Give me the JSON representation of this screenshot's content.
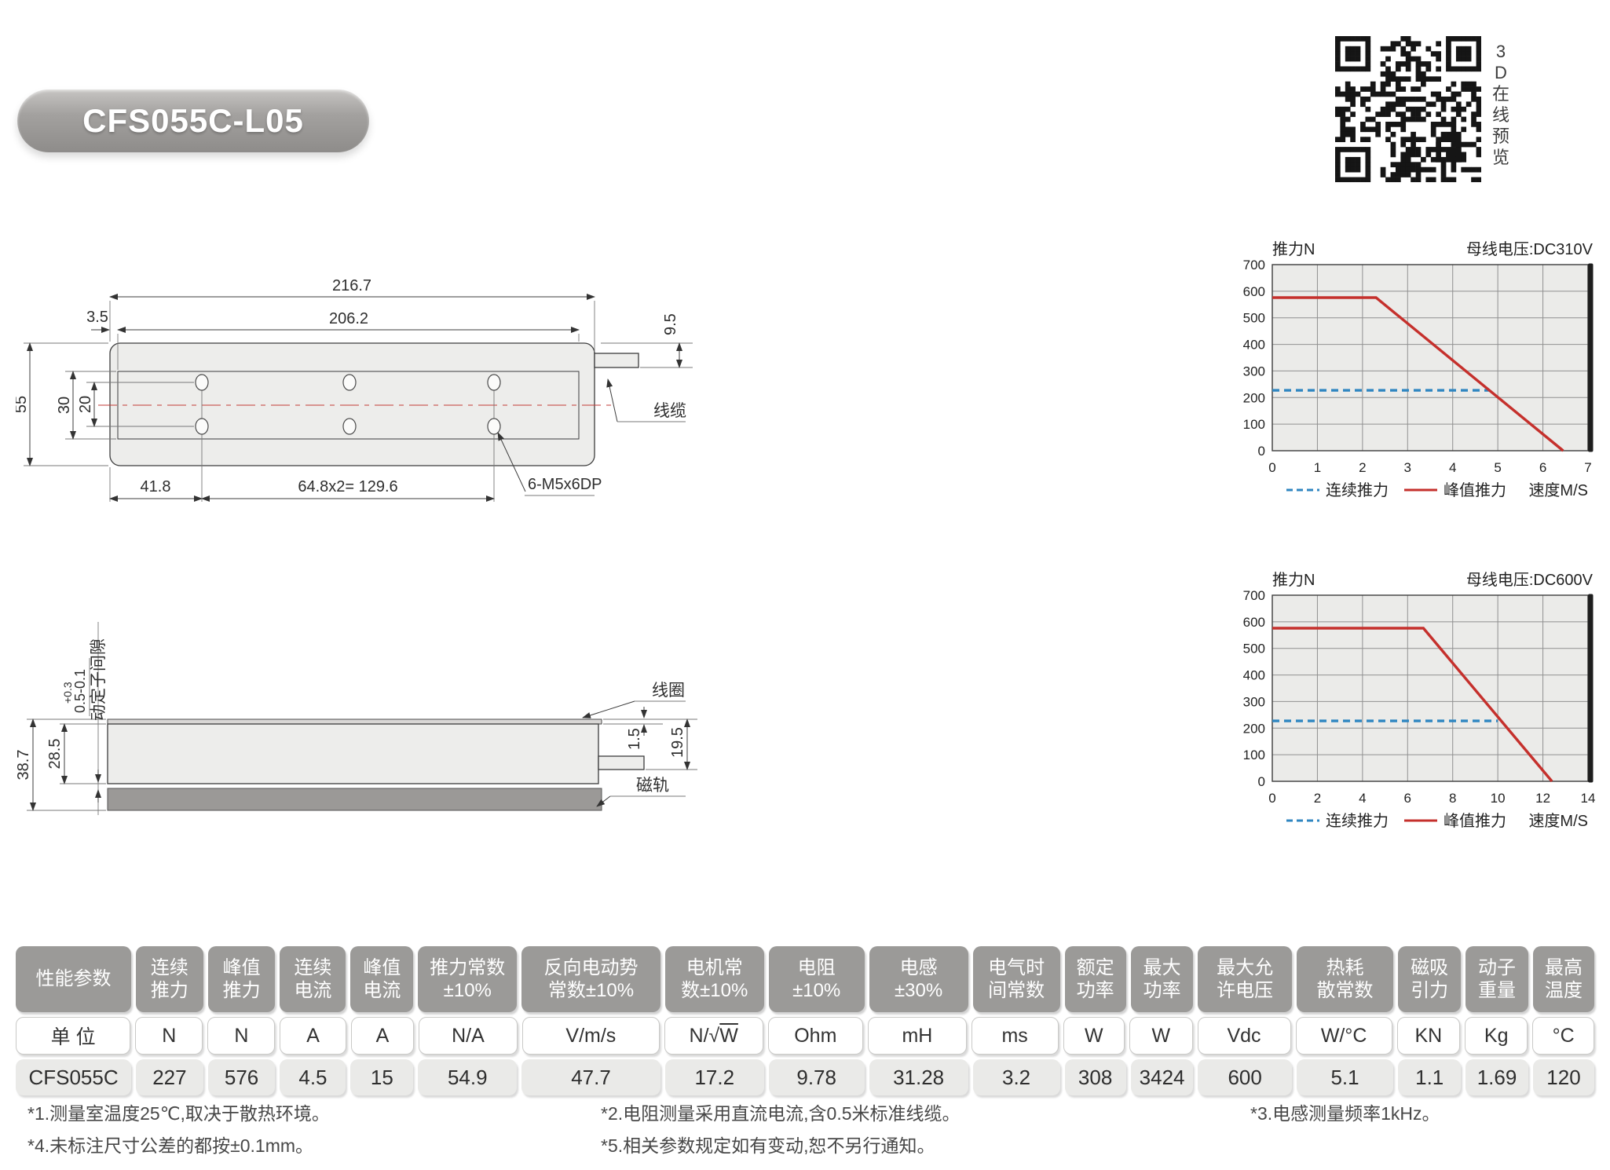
{
  "badge": {
    "label": "CFS055C-L05"
  },
  "qr": {
    "caption": "3D在线预览"
  },
  "drawing_top": {
    "dim_216_7": "216.7",
    "dim_206_2": "206.2",
    "dim_3_5": "3.5",
    "dim_55": "55",
    "dim_30": "30",
    "dim_20": "20",
    "dim_9_5": "9.5",
    "dim_41_8": "41.8",
    "dim_hole_spacing": "64.8x2= 129.6",
    "thread_note": "6-M5x6DP",
    "cable_label": "线缆"
  },
  "drawing_side": {
    "dim_38_7": "38.7",
    "dim_28_5": "28.5",
    "tol_upper": "+0.3",
    "tol_value": "0.5-0.1",
    "gap_label": "动定子间隙",
    "coil_label": "线圈",
    "dim_1_5": "1.5",
    "dim_19_5": "19.5",
    "track_label": "磁轨"
  },
  "chart_data": [
    {
      "type": "line",
      "title_left": "推力N",
      "title_right": "母线电压:DC310V",
      "xlabel": "速度M/S",
      "xlim": [
        0,
        7
      ],
      "ylim": [
        0,
        700
      ],
      "x_ticks": [
        0,
        1,
        2,
        3,
        4,
        5,
        6,
        7
      ],
      "y_ticks": [
        0,
        100,
        200,
        300,
        400,
        500,
        600,
        700
      ],
      "grid": true,
      "legend_position": "bottom",
      "series": [
        {
          "name": "连续推力",
          "style": "dashed",
          "color": "#2f86c1",
          "points": [
            [
              0,
              227
            ],
            [
              4.8,
              227
            ]
          ]
        },
        {
          "name": "峰值推力",
          "style": "solid",
          "color": "#c5302c",
          "points": [
            [
              0,
              576
            ],
            [
              2.3,
              576
            ],
            [
              6.45,
              0
            ]
          ]
        }
      ]
    },
    {
      "type": "line",
      "title_left": "推力N",
      "title_right": "母线电压:DC600V",
      "xlabel": "速度M/S",
      "xlim": [
        0,
        14
      ],
      "ylim": [
        0,
        700
      ],
      "x_ticks": [
        0,
        2,
        4,
        6,
        8,
        10,
        12,
        14
      ],
      "y_ticks": [
        0,
        100,
        200,
        300,
        400,
        500,
        600,
        700
      ],
      "grid": true,
      "legend_position": "bottom",
      "series": [
        {
          "name": "连续推力",
          "style": "dashed",
          "color": "#2f86c1",
          "points": [
            [
              0,
              227
            ],
            [
              10,
              227
            ]
          ]
        },
        {
          "name": "峰值推力",
          "style": "solid",
          "color": "#c5302c",
          "points": [
            [
              0,
              576
            ],
            [
              6.7,
              576
            ],
            [
              12.4,
              0
            ]
          ]
        }
      ]
    }
  ],
  "table": {
    "columns": [
      {
        "header": [
          "性能参数"
        ],
        "unit": "单 位",
        "value": "CFS055C"
      },
      {
        "header": [
          "连续",
          "推力"
        ],
        "unit": "N",
        "value": "227"
      },
      {
        "header": [
          "峰值",
          "推力"
        ],
        "unit": "N",
        "value": "576"
      },
      {
        "header": [
          "连续",
          "电流"
        ],
        "unit": "A",
        "value": "4.5"
      },
      {
        "header": [
          "峰值",
          "电流"
        ],
        "unit": "A",
        "value": "15"
      },
      {
        "header": [
          "推力常数",
          "±10%"
        ],
        "unit": "N/A",
        "value": "54.9"
      },
      {
        "header": [
          "反向电动势",
          "常数±10%"
        ],
        "unit": "V/m/s",
        "value": "47.7"
      },
      {
        "header": [
          "电机常",
          "数±10%"
        ],
        "unit": "N/√W",
        "value": "17.2"
      },
      {
        "header": [
          "电阻",
          "±10%"
        ],
        "unit": "Ohm",
        "value": "9.78"
      },
      {
        "header": [
          "电感",
          "±30%"
        ],
        "unit": "mH",
        "value": "31.28"
      },
      {
        "header": [
          "电气时",
          "间常数"
        ],
        "unit": "ms",
        "value": "3.2"
      },
      {
        "header": [
          "额定",
          "功率"
        ],
        "unit": "W",
        "value": "308"
      },
      {
        "header": [
          "最大",
          "功率"
        ],
        "unit": "W",
        "value": "3424"
      },
      {
        "header": [
          "最大允",
          "许电压"
        ],
        "unit": "Vdc",
        "value": "600"
      },
      {
        "header": [
          "热耗",
          "散常数"
        ],
        "unit": "W/°C",
        "value": "5.1"
      },
      {
        "header": [
          "磁吸",
          "引力"
        ],
        "unit": "KN",
        "value": "1.1"
      },
      {
        "header": [
          "动子",
          "重量"
        ],
        "unit": "Kg",
        "value": "1.69"
      },
      {
        "header": [
          "最高",
          "温度"
        ],
        "unit": "°C",
        "value": "120"
      }
    ]
  },
  "footnotes": {
    "col1": [
      "*1.测量室温度25℃,取决于散热环境。",
      "*4.未标注尺寸公差的都按±0.1mm。"
    ],
    "col2": [
      "*2.电阻测量采用直流电流,含0.5米标准线缆。",
      "*5.相关参数规定如有变动,恕不另行通知。"
    ],
    "col3": [
      "*3.电感测量频率1kHz。"
    ]
  },
  "colors": {
    "peak_thrust_red": "#c5302c",
    "continuous_thrust_blue": "#2f86c1",
    "table_header_gray": "#9b9a98",
    "plot_background": "#ebebe9"
  }
}
